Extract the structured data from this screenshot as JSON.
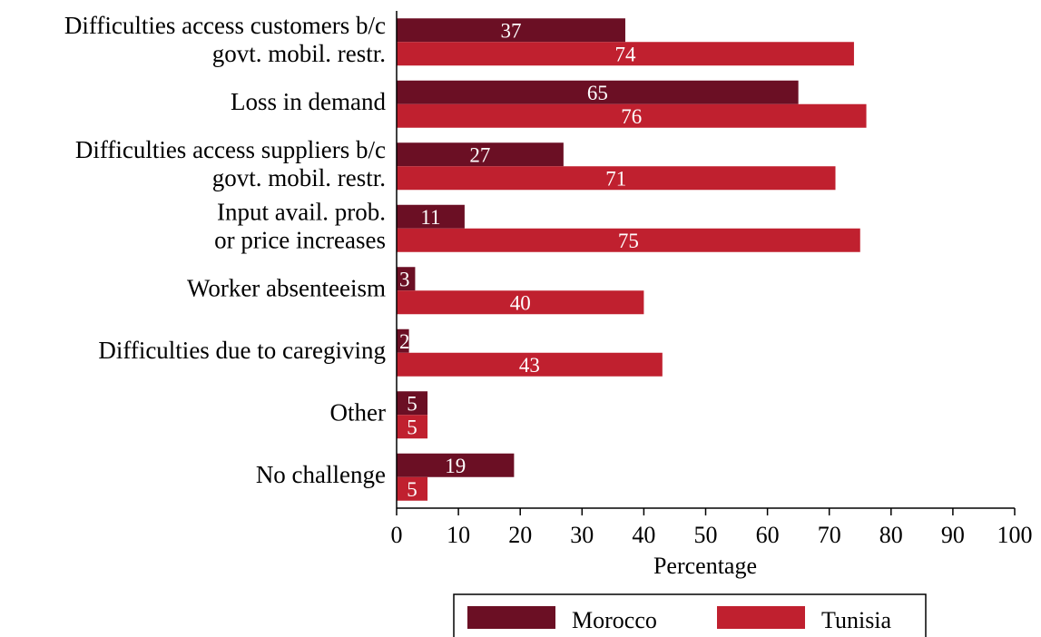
{
  "chart_data": {
    "type": "bar",
    "orientation": "horizontal",
    "categories": [
      "Difficulties access customers b/c\ngovt. mobil. restr.",
      "Loss in demand",
      "Difficulties access suppliers b/c\ngovt. mobil. restr.",
      "Input avail. prob.\nor price increases",
      "Worker absenteeism",
      "Difficulties due to caregiving",
      "Other",
      "No challenge"
    ],
    "series": [
      {
        "name": "Morocco",
        "color": "#6b0f24",
        "values": [
          37,
          65,
          27,
          11,
          3,
          2,
          5,
          19
        ]
      },
      {
        "name": "Tunisia",
        "color": "#c0202f",
        "values": [
          74,
          76,
          71,
          75,
          40,
          43,
          5,
          5
        ]
      }
    ],
    "x_label": "Percentage",
    "xlim": [
      0,
      100
    ],
    "xticks": [
      0,
      10,
      20,
      30,
      40,
      50,
      60,
      70,
      80,
      90,
      100
    ],
    "legend": "bottom"
  }
}
